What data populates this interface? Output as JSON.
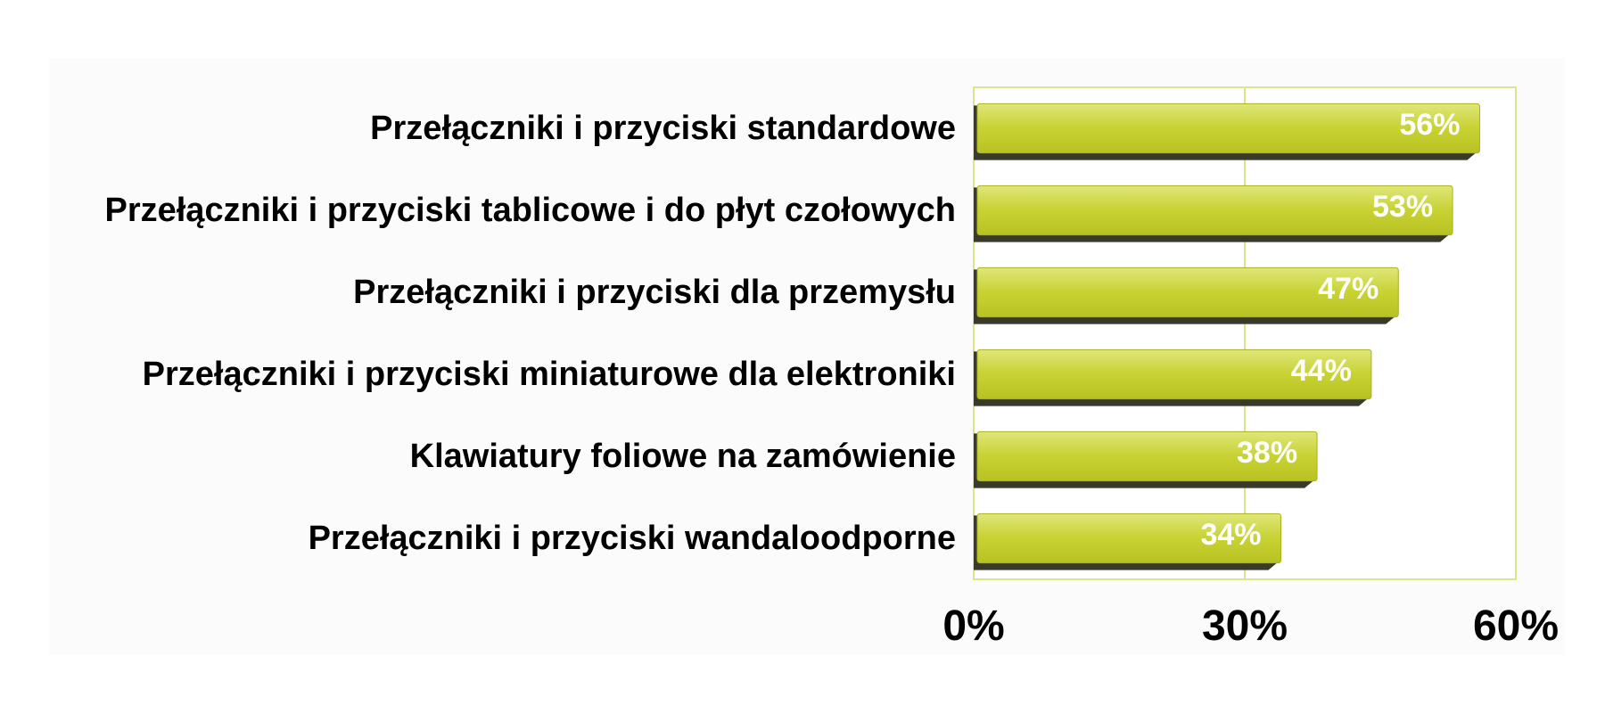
{
  "chart_data": {
    "type": "bar",
    "orientation": "horizontal",
    "categories": [
      "Przełączniki i przyciski standardowe",
      "Przełączniki i przyciski tablicowe i do płyt czołowych",
      "Przełączniki i przyciski dla przemysłu",
      "Przełączniki i przyciski miniaturowe dla elektroniki",
      "Klawiatury foliowe na zamówienie",
      "Przełączniki i przyciski wandaloodporne"
    ],
    "values": [
      56,
      53,
      47,
      44,
      38,
      34
    ],
    "data_labels": [
      "56%",
      "53%",
      "47%",
      "44%",
      "38%",
      "34%"
    ],
    "x_ticks": [
      0,
      30,
      60
    ],
    "x_tick_labels": [
      "0%",
      "30%",
      "60%"
    ],
    "xlim": [
      0,
      60
    ],
    "grid": true,
    "legend": "none",
    "colors": {
      "bar": "#c8d231",
      "bar_highlight": "#dfe67a",
      "bar_shadow": "#3a3a2a",
      "plot_border": "#dde38f",
      "gridline": "#dde38f",
      "background_panel": "#fbfbfb"
    }
  }
}
